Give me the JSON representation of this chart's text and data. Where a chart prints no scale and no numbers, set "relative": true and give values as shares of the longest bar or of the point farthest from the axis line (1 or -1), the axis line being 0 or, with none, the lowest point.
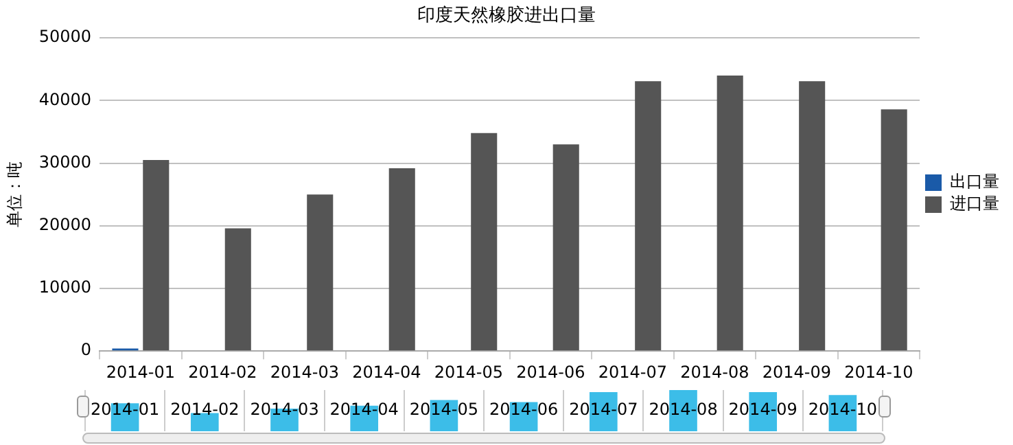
{
  "chart_data": [
    {
      "type": "bar",
      "title": "印度天然橡胶进出口量",
      "ylabel": "单位：吨",
      "categories": [
        "2014-01",
        "2014-02",
        "2014-03",
        "2014-04",
        "2014-05",
        "2014-06",
        "2014-07",
        "2014-08",
        "2014-09",
        "2014-10"
      ],
      "series": [
        {
          "name": "出口量",
          "color": "#1a5aa8",
          "values": [
            400,
            100,
            100,
            100,
            100,
            100,
            100,
            0,
            100,
            100
          ]
        },
        {
          "name": "进口量",
          "color": "#555555",
          "values": [
            30500,
            19600,
            25000,
            29200,
            34800,
            33000,
            43100,
            44000,
            43100,
            38600
          ]
        }
      ],
      "ylim": [
        0,
        50000
      ],
      "yticks": [
        0,
        10000,
        20000,
        30000,
        40000,
        50000
      ],
      "grid": "y",
      "legend": "right"
    },
    {
      "type": "bar",
      "relative": true,
      "categories": [
        "2014-01",
        "2014-02",
        "2014-03",
        "2014-04",
        "2014-05",
        "2014-06",
        "2014-07",
        "2014-08",
        "2014-09",
        "2014-10"
      ],
      "values": [
        0.68,
        0.44,
        0.55,
        0.62,
        0.76,
        0.71,
        0.95,
        1,
        0.95,
        0.88
      ],
      "color": "#3cbde8",
      "grid": "x"
    }
  ]
}
